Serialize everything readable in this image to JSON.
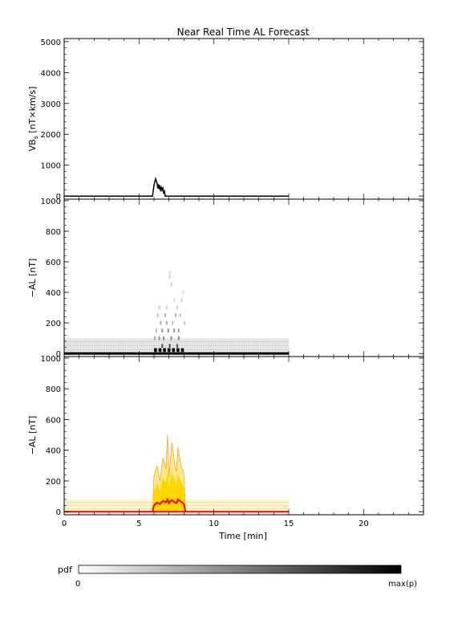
{
  "title": "Near Real Time AL Forecast",
  "colorbar": {
    "label": "pdf",
    "min_label": "0",
    "max_label": "max(p)"
  },
  "chart_data": [
    {
      "type": "line",
      "title": "Near Real Time AL Forecast",
      "xlabel": "",
      "ylabel": "VB_s [nT×km/s]",
      "ylabel_main": "VB",
      "ylabel_sub": "s",
      "ylabel_rest": " [nT×km/s]",
      "xlim": [
        0,
        24
      ],
      "ylim": [
        -100,
        5100
      ],
      "yticks": [
        0,
        1000,
        2000,
        3000,
        4000,
        5000
      ],
      "ytick_labels": [
        "0",
        "1000",
        "2000",
        "3000",
        "4000",
        "5000"
      ],
      "line_color": "#000000",
      "series": [
        {
          "x": [
            0,
            5.9,
            6.0,
            6.1,
            6.2,
            6.25,
            6.3,
            6.35,
            6.4,
            6.45,
            6.5,
            6.55,
            6.6,
            6.65,
            6.7,
            6.75,
            6.8,
            15
          ],
          "y": [
            0,
            0,
            350,
            560,
            430,
            250,
            380,
            220,
            350,
            150,
            300,
            200,
            250,
            100,
            150,
            0,
            0,
            0
          ]
        }
      ]
    },
    {
      "type": "heatmap",
      "xlabel": "",
      "ylabel": "−AL [nT]",
      "xlim": [
        0,
        24
      ],
      "ylim": [
        -20,
        1010
      ],
      "yticks": [
        0,
        200,
        400,
        600,
        800,
        1000
      ],
      "ytick_labels": [
        "0",
        "200",
        "400",
        "600",
        "800",
        "1000"
      ],
      "x_range": [
        0,
        15
      ],
      "background_band": [
        0,
        100
      ],
      "cells": [
        {
          "x": 6.0,
          "y": 100,
          "p": 0.35
        },
        {
          "x": 6.1,
          "y": 150,
          "p": 0.3
        },
        {
          "x": 6.2,
          "y": 250,
          "p": 0.25
        },
        {
          "x": 6.3,
          "y": 300,
          "p": 0.2
        },
        {
          "x": 6.4,
          "y": 200,
          "p": 0.35
        },
        {
          "x": 6.5,
          "y": 150,
          "p": 0.4
        },
        {
          "x": 6.6,
          "y": 100,
          "p": 0.5
        },
        {
          "x": 6.7,
          "y": 250,
          "p": 0.3
        },
        {
          "x": 6.8,
          "y": 200,
          "p": 0.35
        },
        {
          "x": 6.9,
          "y": 150,
          "p": 0.45
        },
        {
          "x": 7.0,
          "y": 500,
          "p": 0.2
        },
        {
          "x": 7.0,
          "y": 525,
          "p": 0.15
        },
        {
          "x": 7.1,
          "y": 100,
          "p": 0.5
        },
        {
          "x": 7.1,
          "y": 450,
          "p": 0.18
        },
        {
          "x": 7.2,
          "y": 200,
          "p": 0.3
        },
        {
          "x": 7.3,
          "y": 150,
          "p": 0.45
        },
        {
          "x": 7.4,
          "y": 250,
          "p": 0.3
        },
        {
          "x": 7.5,
          "y": 300,
          "p": 0.2
        },
        {
          "x": 7.6,
          "y": 150,
          "p": 0.4
        },
        {
          "x": 7.7,
          "y": 250,
          "p": 0.25
        },
        {
          "x": 7.8,
          "y": 350,
          "p": 0.2
        },
        {
          "x": 7.9,
          "y": 400,
          "p": 0.15
        },
        {
          "x": 8.0,
          "y": 200,
          "p": 0.25
        },
        {
          "x": 6.5,
          "y": 50,
          "p": 0.7
        },
        {
          "x": 7.0,
          "y": 50,
          "p": 0.75
        },
        {
          "x": 7.5,
          "y": 50,
          "p": 0.7
        },
        {
          "x": 6.3,
          "y": 100,
          "p": 0.45
        },
        {
          "x": 7.6,
          "y": 100,
          "p": 0.5
        },
        {
          "x": 6.8,
          "y": 300,
          "p": 0.18
        },
        {
          "x": 7.3,
          "y": 350,
          "p": 0.15
        }
      ],
      "base_cells_x": [
        6.0,
        6.3,
        6.6,
        6.9,
        7.2,
        7.5,
        7.8
      ]
    },
    {
      "type": "area",
      "xlabel": "Time [min]",
      "ylabel": "−AL [nT]",
      "xlim": [
        0,
        24
      ],
      "ylim": [
        -20,
        1010
      ],
      "xticks": [
        0,
        5,
        10,
        15,
        20
      ],
      "xtick_labels": [
        "0",
        "5",
        "10",
        "15",
        "20"
      ],
      "yticks": [
        0,
        200,
        400,
        600,
        800,
        1000
      ],
      "ytick_labels": [
        "0",
        "200",
        "400",
        "600",
        "800",
        "1000"
      ],
      "x_range": [
        0,
        15
      ],
      "background_band": [
        0,
        80
      ],
      "series": [
        {
          "x": [
            0,
            5.9,
            6.0,
            6.2,
            6.4,
            6.6,
            6.8,
            6.9,
            7.0,
            7.1,
            7.2,
            7.4,
            7.5,
            7.6,
            7.8,
            8.0,
            8.1,
            15
          ],
          "y": [
            0,
            0,
            230,
            300,
            200,
            350,
            280,
            500,
            220,
            350,
            450,
            300,
            260,
            420,
            300,
            250,
            0,
            0
          ],
          "color": "#f5a623"
        },
        {
          "x": [
            0,
            5.9,
            6.0,
            6.2,
            6.4,
            6.6,
            6.8,
            6.9,
            7.0,
            7.1,
            7.2,
            7.4,
            7.5,
            7.6,
            7.8,
            8.0,
            8.1,
            15
          ],
          "y": [
            0,
            0,
            120,
            180,
            130,
            220,
            180,
            260,
            150,
            200,
            250,
            200,
            170,
            240,
            190,
            150,
            0,
            0
          ],
          "color": "#ffd700"
        },
        {
          "x": [
            0,
            5.9,
            6.0,
            6.2,
            6.4,
            6.6,
            6.8,
            6.9,
            7.0,
            7.1,
            7.2,
            7.4,
            7.5,
            7.6,
            7.8,
            8.0,
            8.1,
            15
          ],
          "y": [
            0,
            0,
            40,
            60,
            50,
            70,
            60,
            80,
            55,
            70,
            75,
            60,
            55,
            80,
            65,
            50,
            0,
            0
          ],
          "color": "#ff0000"
        }
      ]
    }
  ]
}
